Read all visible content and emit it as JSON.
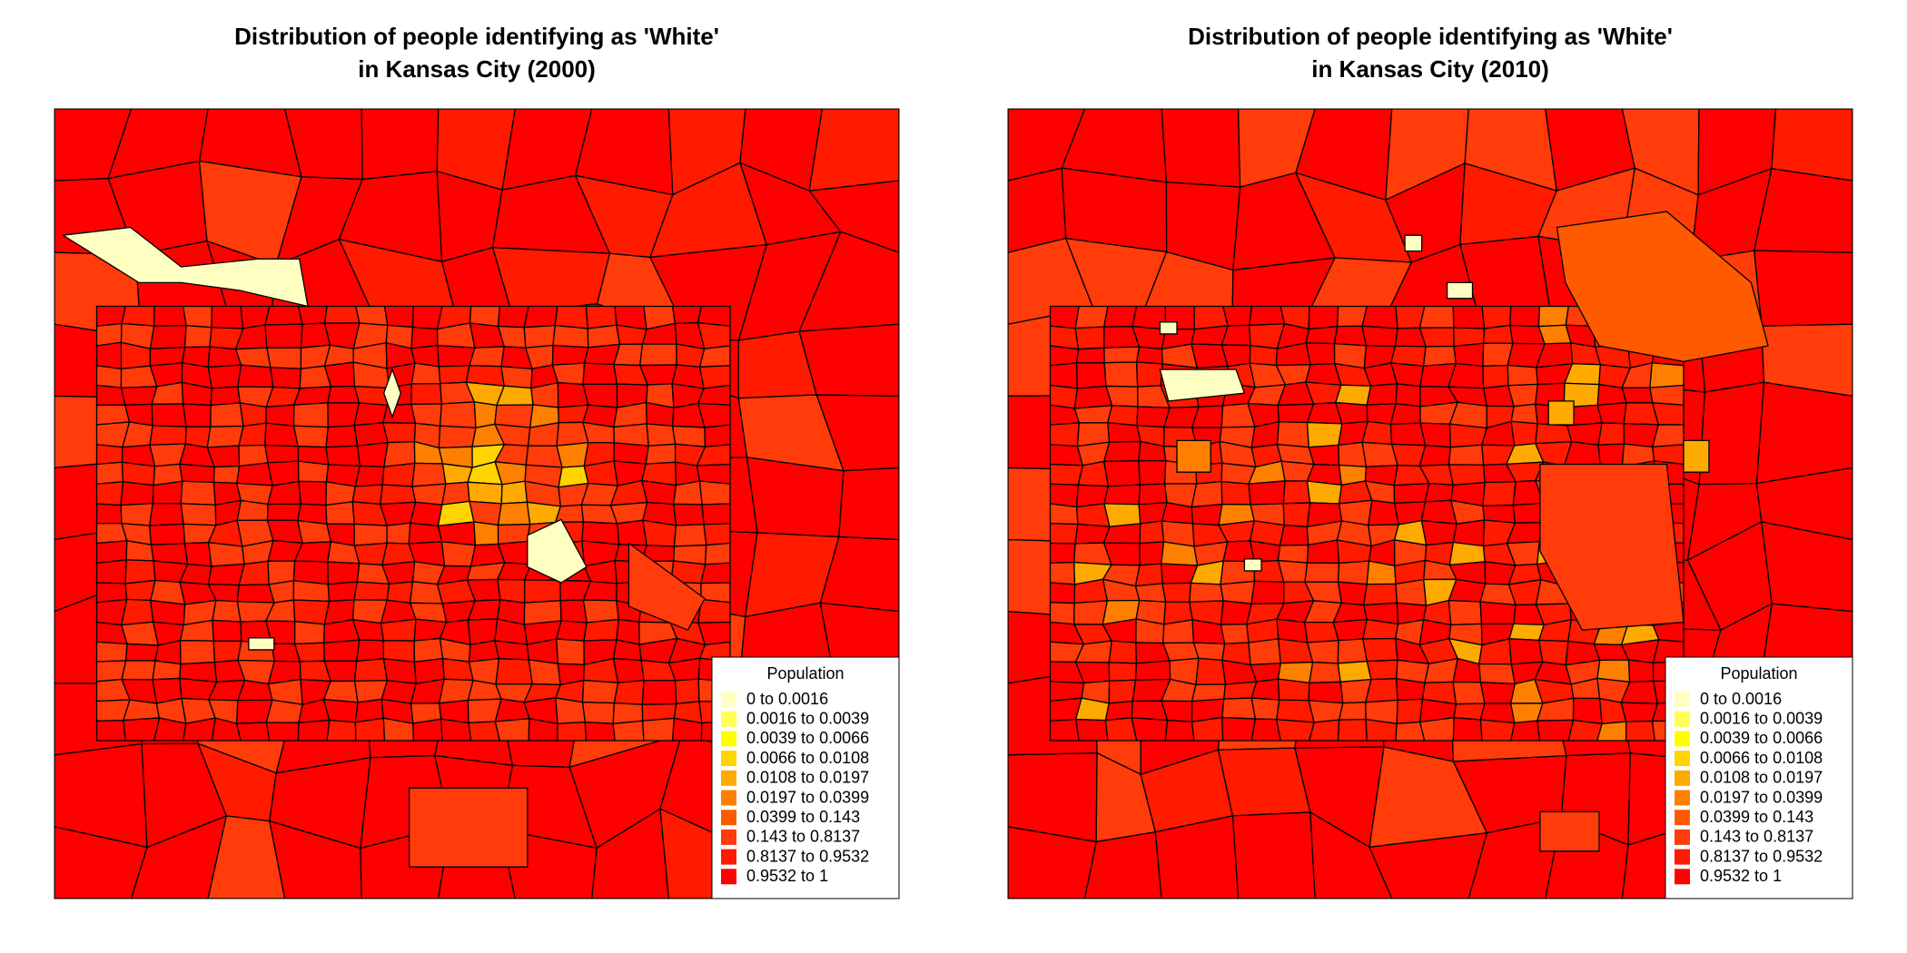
{
  "maps": [
    {
      "title_lines": [
        "Distribution of people identifying as 'White'",
        "in Kansas City (2000)"
      ]
    },
    {
      "title_lines": [
        "Distribution of people identifying as 'White'",
        "in Kansas City (2010)"
      ]
    }
  ],
  "legend": {
    "title": "Population",
    "items": [
      {
        "label": "0 to 0.0016",
        "color": "#ffffc2"
      },
      {
        "label": "0.0016 to 0.0039",
        "color": "#ffff55"
      },
      {
        "label": "0.0039 to 0.0066",
        "color": "#ffff00"
      },
      {
        "label": "0.0066 to 0.0108",
        "color": "#ffd400"
      },
      {
        "label": "0.0108 to 0.0197",
        "color": "#ffaa00"
      },
      {
        "label": "0.0197 to 0.0399",
        "color": "#ff8000"
      },
      {
        "label": "0.0399 to 0.143",
        "color": "#ff5a00"
      },
      {
        "label": "0.143 to 0.8137",
        "color": "#ff3c0a"
      },
      {
        "label": "0.8137 to 0.9532",
        "color": "#ff1a00"
      },
      {
        "label": "0.9532 to 1",
        "color": "#ff0000"
      }
    ]
  }
}
